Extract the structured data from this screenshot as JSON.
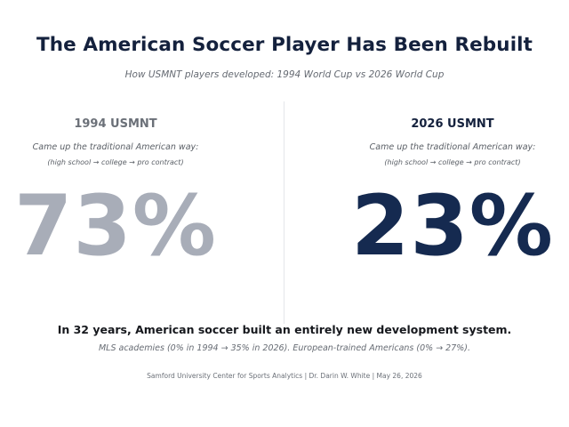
{
  "title": "The American Soccer Player Has Been Rebuilt",
  "subtitle": "How USMNT players developed: 1994 World Cup vs 2026 World Cup",
  "left": {
    "header": "1994 USMNT",
    "line1": "Came up the traditional American way:",
    "line2": "(high school → college → pro contract)",
    "value": "73%",
    "color": "#a8adb8"
  },
  "right": {
    "header": "2026 USMNT",
    "line1": "Came up the traditional American way:",
    "line2": "(high school → college → pro contract)",
    "value": "23%",
    "color": "#152a50"
  },
  "summary": "In 32 years, American soccer built an entirely new development system.",
  "detail": "MLS academies (0% in 1994 → 35% in 2026). European-trained Americans (0% → 27%).",
  "footer": "Samford University Center for Sports Analytics  |  Dr. Darin W. White  |  May 26, 2026"
}
